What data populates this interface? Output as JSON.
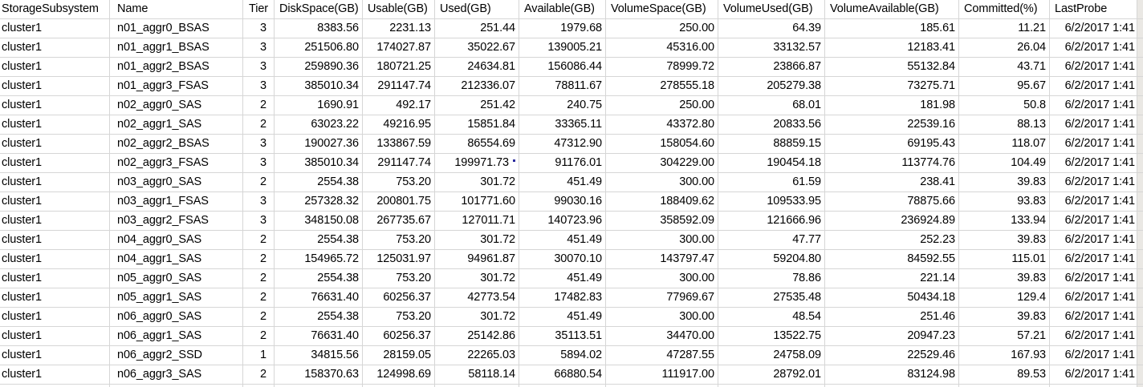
{
  "app": {
    "description": "Spreadsheet view of storage subsystem aggregate capacity data"
  },
  "colors": {
    "background": "#ffffff",
    "text": "#000000",
    "gridline": "#d6d6d6",
    "right_edge_strip": "#eae8e4",
    "note_marker": "#2b2b9e"
  },
  "table": {
    "columns": [
      {
        "key": "storage_subsystem",
        "label": "StorageSubsystem",
        "align": "left"
      },
      {
        "key": "name",
        "label": "Name",
        "align": "left"
      },
      {
        "key": "tier",
        "label": "Tier",
        "align": "right"
      },
      {
        "key": "disk_space_gb",
        "label": "DiskSpace(GB)",
        "align": "right"
      },
      {
        "key": "usable_gb",
        "label": "Usable(GB)",
        "align": "right"
      },
      {
        "key": "used_gb",
        "label": "Used(GB)",
        "align": "right"
      },
      {
        "key": "available_gb",
        "label": "Available(GB)",
        "align": "right"
      },
      {
        "key": "volume_space_gb",
        "label": "VolumeSpace(GB)",
        "align": "right"
      },
      {
        "key": "volume_used_gb",
        "label": "VolumeUsed(GB)",
        "align": "right"
      },
      {
        "key": "volume_available_gb",
        "label": "VolumeAvailable(GB)",
        "align": "right"
      },
      {
        "key": "committed_pct",
        "label": "Committed(%)",
        "align": "right"
      },
      {
        "key": "last_probe",
        "label": "LastProbe",
        "align": "right"
      }
    ],
    "rows": [
      [
        "cluster1",
        "n01_aggr0_BSAS",
        "3",
        "8383.56",
        "2231.13",
        "251.44",
        "1979.68",
        "250.00",
        "64.39",
        "185.61",
        "11.21",
        "6/2/2017 1:41"
      ],
      [
        "cluster1",
        "n01_aggr1_BSAS",
        "3",
        "251506.80",
        "174027.87",
        "35022.67",
        "139005.21",
        "45316.00",
        "33132.57",
        "12183.41",
        "26.04",
        "6/2/2017 1:41"
      ],
      [
        "cluster1",
        "n01_aggr2_BSAS",
        "3",
        "259890.36",
        "180721.25",
        "24634.81",
        "156086.44",
        "78999.72",
        "23866.87",
        "55132.84",
        "43.71",
        "6/2/2017 1:41"
      ],
      [
        "cluster1",
        "n01_aggr3_FSAS",
        "3",
        "385010.34",
        "291147.74",
        "212336.07",
        "78811.67",
        "278555.18",
        "205279.38",
        "73275.71",
        "95.67",
        "6/2/2017 1:41"
      ],
      [
        "cluster1",
        "n02_aggr0_SAS",
        "2",
        "1690.91",
        "492.17",
        "251.42",
        "240.75",
        "250.00",
        "68.01",
        "181.98",
        "50.8",
        "6/2/2017 1:41"
      ],
      [
        "cluster1",
        "n02_aggr1_SAS",
        "2",
        "63023.22",
        "49216.95",
        "15851.84",
        "33365.11",
        "43372.80",
        "20833.56",
        "22539.16",
        "88.13",
        "6/2/2017 1:41"
      ],
      [
        "cluster1",
        "n02_aggr2_BSAS",
        "3",
        "190027.36",
        "133867.59",
        "86554.69",
        "47312.90",
        "158054.60",
        "88859.15",
        "69195.43",
        "118.07",
        "6/2/2017 1:41"
      ],
      [
        "cluster1",
        "n02_aggr3_FSAS",
        "3",
        "385010.34",
        "291147.74",
        "199971.73",
        "91176.01",
        "304229.00",
        "190454.18",
        "113774.76",
        "104.49",
        "6/2/2017 1:41"
      ],
      [
        "cluster1",
        "n03_aggr0_SAS",
        "2",
        "2554.38",
        "753.20",
        "301.72",
        "451.49",
        "300.00",
        "61.59",
        "238.41",
        "39.83",
        "6/2/2017 1:41"
      ],
      [
        "cluster1",
        "n03_aggr1_FSAS",
        "3",
        "257328.32",
        "200801.75",
        "101771.60",
        "99030.16",
        "188409.62",
        "109533.95",
        "78875.66",
        "93.83",
        "6/2/2017 1:41"
      ],
      [
        "cluster1",
        "n03_aggr2_FSAS",
        "3",
        "348150.08",
        "267735.67",
        "127011.71",
        "140723.96",
        "358592.09",
        "121666.96",
        "236924.89",
        "133.94",
        "6/2/2017 1:41"
      ],
      [
        "cluster1",
        "n04_aggr0_SAS",
        "2",
        "2554.38",
        "753.20",
        "301.72",
        "451.49",
        "300.00",
        "47.77",
        "252.23",
        "39.83",
        "6/2/2017 1:41"
      ],
      [
        "cluster1",
        "n04_aggr1_SAS",
        "2",
        "154965.72",
        "125031.97",
        "94961.87",
        "30070.10",
        "143797.47",
        "59204.80",
        "84592.55",
        "115.01",
        "6/2/2017 1:41"
      ],
      [
        "cluster1",
        "n05_aggr0_SAS",
        "2",
        "2554.38",
        "753.20",
        "301.72",
        "451.49",
        "300.00",
        "78.86",
        "221.14",
        "39.83",
        "6/2/2017 1:41"
      ],
      [
        "cluster1",
        "n05_aggr1_SAS",
        "2",
        "76631.40",
        "60256.37",
        "42773.54",
        "17482.83",
        "77969.67",
        "27535.48",
        "50434.18",
        "129.4",
        "6/2/2017 1:41"
      ],
      [
        "cluster1",
        "n06_aggr0_SAS",
        "2",
        "2554.38",
        "753.20",
        "301.72",
        "451.49",
        "300.00",
        "48.54",
        "251.46",
        "39.83",
        "6/2/2017 1:41"
      ],
      [
        "cluster1",
        "n06_aggr1_SAS",
        "2",
        "76631.40",
        "60256.37",
        "25142.86",
        "35113.51",
        "34470.00",
        "13522.75",
        "20947.23",
        "57.21",
        "6/2/2017 1:41"
      ],
      [
        "cluster1",
        "n06_aggr2_SSD",
        "1",
        "34815.56",
        "28159.05",
        "22265.03",
        "5894.02",
        "47287.55",
        "24758.09",
        "22529.46",
        "167.93",
        "6/2/2017 1:41"
      ],
      [
        "cluster1",
        "n06_aggr3_SAS",
        "2",
        "158370.63",
        "124998.69",
        "58118.14",
        "66880.54",
        "111917.00",
        "28792.01",
        "83124.98",
        "89.53",
        "6/2/2017 1:41"
      ]
    ],
    "note_marker": {
      "row_index": 7,
      "column_index": 5,
      "color": "#2b2b9e"
    },
    "trailing_partial_empty_row": true
  }
}
